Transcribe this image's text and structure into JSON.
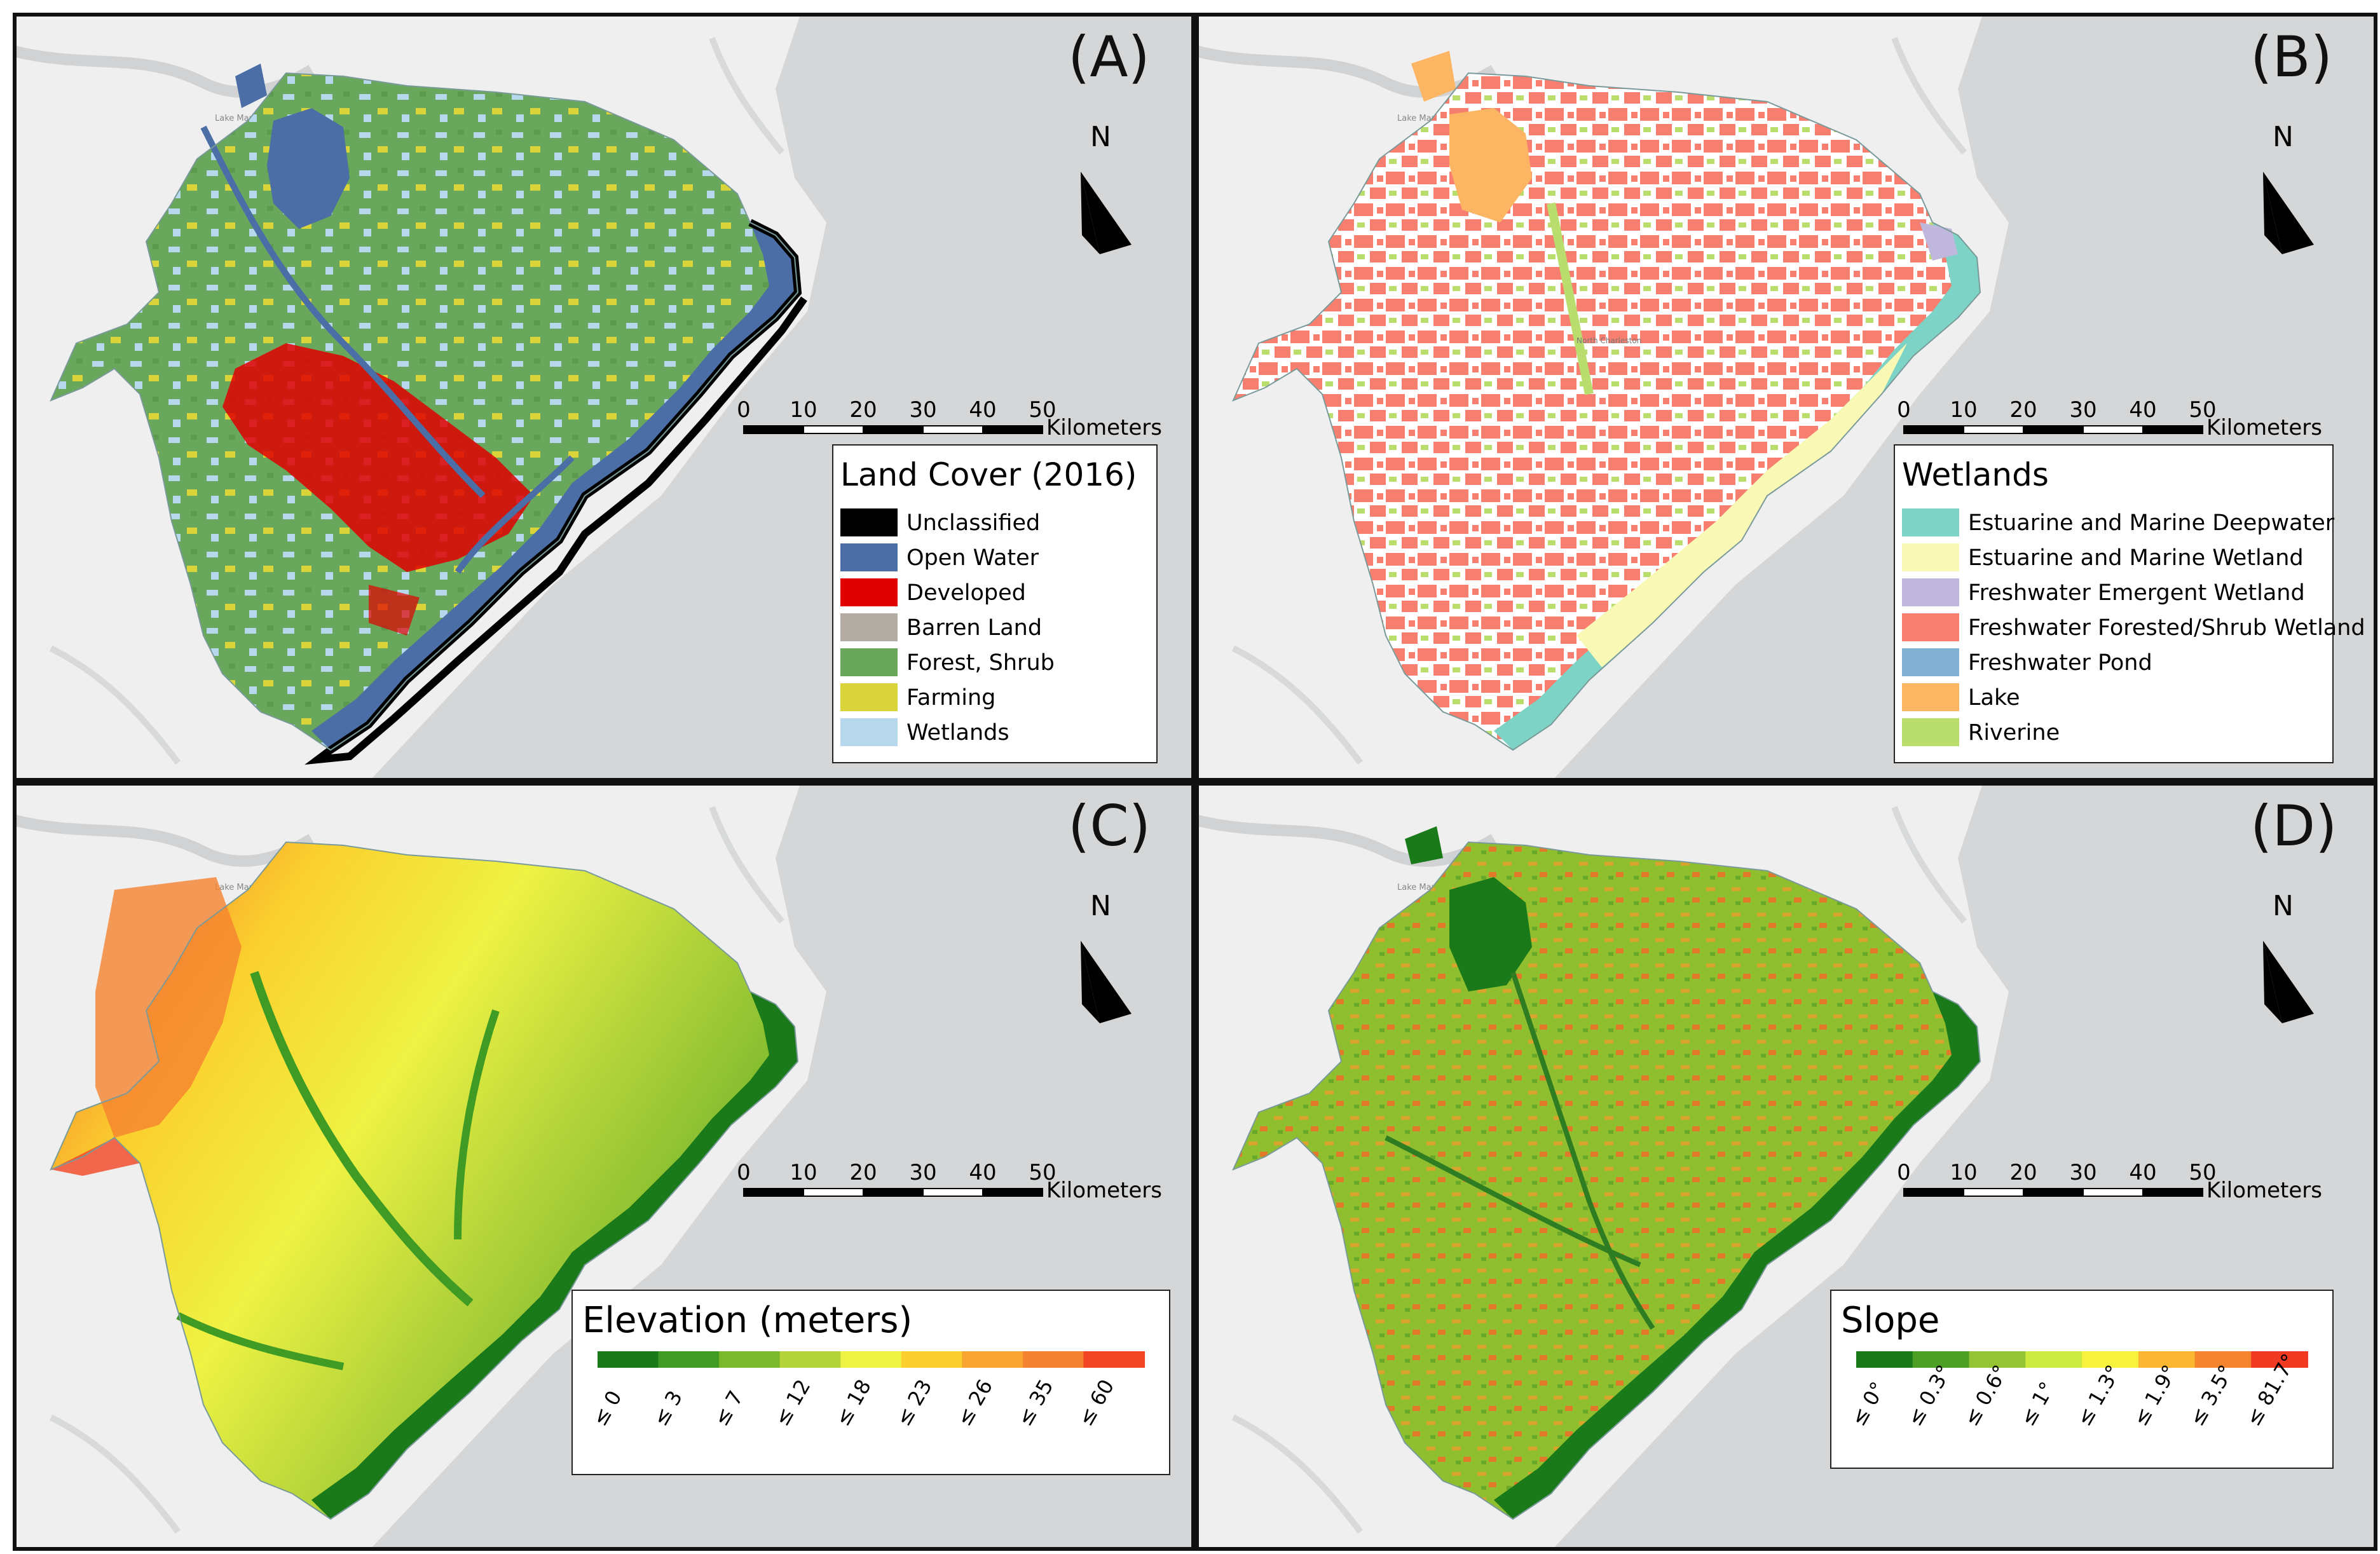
{
  "panels": [
    {
      "id": "A",
      "label": "(A)",
      "map_type": "categorical",
      "city_label": "Lake Marion",
      "legend": {
        "title": "Land Cover (2016)",
        "items": [
          {
            "label": "Unclassified",
            "color": "#000000"
          },
          {
            "label": "Open Water",
            "color": "#4a6ea5"
          },
          {
            "label": "Developed",
            "color": "#e10000"
          },
          {
            "label": "Barren Land",
            "color": "#b3aca2"
          },
          {
            "label": "Forest, Shrub",
            "color": "#68a75c"
          },
          {
            "label": "Farming",
            "color": "#d9d43a"
          },
          {
            "label": "Wetlands",
            "color": "#b7d8ec"
          }
        ]
      }
    },
    {
      "id": "B",
      "label": "(B)",
      "map_type": "categorical",
      "city_label": "Lake Marion",
      "legend": {
        "title": "Wetlands",
        "items": [
          {
            "label": "Estuarine and Marine Deepwater",
            "color": "#7ed3c7"
          },
          {
            "label": "Estuarine and Marine Wetland",
            "color": "#f9f9b5"
          },
          {
            "label": "Freshwater Emergent Wetland",
            "color": "#bfb8dc"
          },
          {
            "label": "Freshwater Forested/Shrub Wetland",
            "color": "#f87f70"
          },
          {
            "label": "Freshwater Pond",
            "color": "#82b0d3"
          },
          {
            "label": "Lake",
            "color": "#fbb563"
          },
          {
            "label": "Riverine",
            "color": "#b9de6d"
          }
        ]
      }
    },
    {
      "id": "C",
      "label": "(C)",
      "map_type": "ramp",
      "city_label": "Lake Marion",
      "legend": {
        "title": "Elevation (meters)",
        "classes": [
          {
            "label": "≤ 0",
            "color": "#1a7a1a"
          },
          {
            "label": "≤ 3",
            "color": "#3f9b23"
          },
          {
            "label": "≤ 7",
            "color": "#7cb82e"
          },
          {
            "label": "≤ 12",
            "color": "#b4d43a"
          },
          {
            "label": "≤ 18",
            "color": "#eef243"
          },
          {
            "label": "≤ 23",
            "color": "#fbd02e"
          },
          {
            "label": "≤ 26",
            "color": "#f9a533"
          },
          {
            "label": "≤ 35",
            "color": "#f58230"
          },
          {
            "label": "≤ 60",
            "color": "#f24423"
          }
        ]
      }
    },
    {
      "id": "D",
      "label": "(D)",
      "map_type": "ramp",
      "city_label": "Lake Marion",
      "legend": {
        "title": "Slope",
        "classes": [
          {
            "label": "≤ 0°",
            "color": "#1a7a1a"
          },
          {
            "label": "≤ 0.3°",
            "color": "#4e9f25"
          },
          {
            "label": "≤ 0.6°",
            "color": "#94c434"
          },
          {
            "label": "≤ 1°",
            "color": "#ccea3f"
          },
          {
            "label": "≤ 1.3°",
            "color": "#f7f23d"
          },
          {
            "label": "≤ 1.9°",
            "color": "#fbb632"
          },
          {
            "label": "≤ 3.5°",
            "color": "#f5842f"
          },
          {
            "label": "≤ 81.7°",
            "color": "#f03a22"
          }
        ]
      }
    }
  ],
  "north_arrow": {
    "label": "N"
  },
  "scale_bar": {
    "ticks": [
      "0",
      "10",
      "20",
      "30",
      "40",
      "50"
    ],
    "unit": "Kilometers"
  },
  "colors": {
    "ocean": "#d4d6d7",
    "land": "#efefef",
    "panel_border": "#111111"
  }
}
